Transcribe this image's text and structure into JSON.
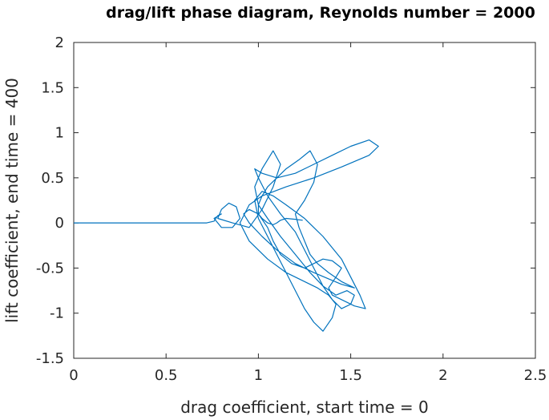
{
  "chart_data": {
    "type": "line",
    "title": "drag/lift phase diagram, Reynolds number = 2000",
    "xlabel": "drag coefficient, start time = 0",
    "ylabel": "lift coefficient, end time = 400",
    "xlim": [
      0,
      2.5
    ],
    "ylim": [
      -1.5,
      2
    ],
    "xticks": [
      0,
      0.5,
      1,
      1.5,
      2,
      2.5
    ],
    "xtick_labels": [
      "0",
      "0.5",
      "1",
      "1.5",
      "2",
      "2.5"
    ],
    "yticks": [
      -1.5,
      -1,
      -0.5,
      0,
      0.5,
      1,
      1.5,
      2
    ],
    "ytick_labels": [
      "-1.5",
      "-1",
      "-0.5",
      "0",
      "0.5",
      "1",
      "1.5",
      "2"
    ],
    "grid": false,
    "line_color": "#0072BD",
    "series": [
      {
        "x": [
          0.0,
          0.3,
          0.5,
          0.62,
          0.68,
          0.72,
          0.76,
          0.78,
          0.8,
          0.76,
          0.8,
          0.86,
          0.9,
          0.88,
          0.84,
          0.8,
          0.78,
          0.86,
          0.95,
          1.02,
          1.08,
          1.12,
          1.08,
          1.02,
          0.98,
          1.0,
          1.05,
          1.12,
          1.2,
          1.28,
          1.35,
          1.4,
          1.45,
          1.5,
          1.52,
          1.48,
          1.42,
          1.35,
          1.3,
          1.25,
          1.2,
          1.12,
          1.05,
          1.0,
          0.98,
          1.02,
          1.1,
          1.2,
          1.3,
          1.4,
          1.5,
          1.6,
          1.65,
          1.6,
          1.45,
          1.3,
          1.15,
          1.02,
          0.95,
          0.9,
          0.95,
          1.05,
          1.15,
          1.25,
          1.32,
          1.38,
          1.42,
          1.4,
          1.35,
          1.3,
          1.25,
          1.2,
          1.15,
          1.1,
          1.05,
          1.0,
          0.98,
          1.02,
          1.08,
          1.15,
          1.25,
          1.35,
          1.45,
          1.5,
          1.55,
          1.58,
          1.52,
          1.45,
          1.4,
          1.38,
          1.42,
          1.45,
          1.4,
          1.35,
          1.3,
          1.25,
          1.18,
          1.12,
          1.08,
          1.05,
          1.0,
          0.95,
          0.92,
          0.95,
          1.02,
          1.1,
          1.2,
          1.3,
          1.38,
          1.45,
          1.52,
          1.45,
          1.38,
          1.32,
          1.28,
          1.25,
          1.22,
          1.2,
          1.25,
          1.3,
          1.32,
          1.28,
          1.22,
          1.15,
          1.1,
          1.05,
          1.02,
          1.0,
          1.0,
          1.02,
          1.05,
          1.08,
          1.1,
          1.12,
          1.15,
          1.2,
          1.24
        ],
        "y": [
          0.0,
          0.0,
          0.0,
          0.0,
          0.0,
          0.0,
          0.02,
          0.08,
          0.1,
          0.05,
          -0.05,
          -0.05,
          0.05,
          0.18,
          0.22,
          0.15,
          0.05,
          0.0,
          -0.05,
          0.15,
          0.4,
          0.65,
          0.8,
          0.6,
          0.4,
          0.2,
          0.05,
          -0.15,
          -0.35,
          -0.55,
          -0.7,
          -0.85,
          -0.95,
          -0.9,
          -0.8,
          -0.75,
          -0.8,
          -0.7,
          -0.5,
          -0.3,
          -0.1,
          0.1,
          0.3,
          0.5,
          0.6,
          0.55,
          0.5,
          0.55,
          0.65,
          0.75,
          0.85,
          0.92,
          0.85,
          0.75,
          0.62,
          0.5,
          0.4,
          0.3,
          0.2,
          0.0,
          -0.2,
          -0.4,
          -0.55,
          -0.65,
          -0.72,
          -0.8,
          -0.9,
          -1.05,
          -1.2,
          -1.1,
          -0.95,
          -0.75,
          -0.55,
          -0.35,
          -0.15,
          0.05,
          0.25,
          0.35,
          0.3,
          0.2,
          0.05,
          -0.15,
          -0.4,
          -0.6,
          -0.8,
          -0.95,
          -0.92,
          -0.85,
          -0.8,
          -0.72,
          -0.6,
          -0.5,
          -0.42,
          -0.4,
          -0.45,
          -0.5,
          -0.45,
          -0.35,
          -0.2,
          -0.05,
          0.1,
          0.15,
          0.1,
          0.0,
          -0.15,
          -0.3,
          -0.45,
          -0.55,
          -0.62,
          -0.68,
          -0.72,
          -0.65,
          -0.55,
          -0.45,
          -0.35,
          -0.2,
          -0.05,
          0.1,
          0.25,
          0.45,
          0.65,
          0.8,
          0.7,
          0.6,
          0.5,
          0.4,
          0.3,
          0.2,
          0.1,
          0.05,
          0.0,
          -0.02,
          0.0,
          0.03,
          0.05,
          0.04,
          0.03
        ]
      }
    ]
  }
}
